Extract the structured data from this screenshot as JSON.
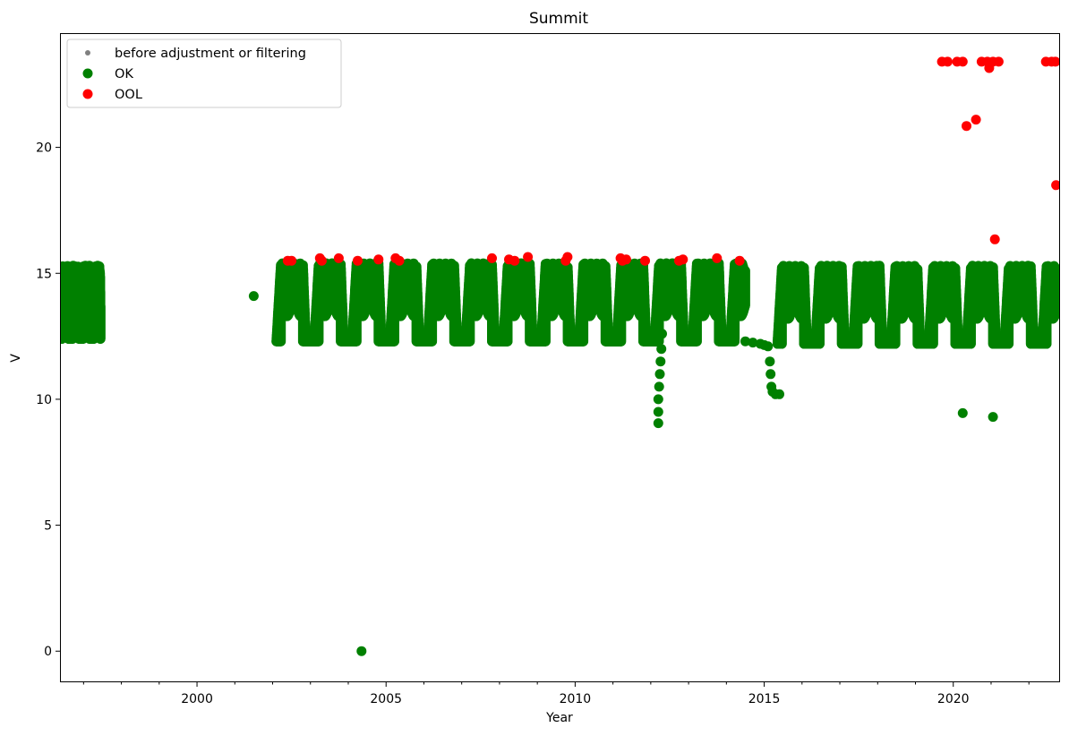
{
  "chart_data": {
    "type": "scatter",
    "title": "Summit",
    "xlabel": "Year",
    "ylabel": "V",
    "xlim": [
      1996.4,
      2022.8
    ],
    "ylim": [
      -1.2,
      24.5
    ],
    "x_ticks": [
      2000,
      2005,
      2010,
      2015,
      2020
    ],
    "y_ticks": [
      0,
      5,
      10,
      15,
      20
    ],
    "grid": false,
    "legend_position": "top-left",
    "legend": [
      "before adjustment or filtering",
      "OK",
      "OOL"
    ],
    "colors": {
      "before": "#808080",
      "ok": "#008000",
      "ool": "#ff0000"
    },
    "seasonal_bands": [
      {
        "series": "OK",
        "start": 1996.4,
        "end": 1997.45,
        "low": 12.4,
        "high": 15.3,
        "period": 0.28
      },
      {
        "series": "OK",
        "start": 2002.1,
        "end": 2014.5,
        "low": 12.3,
        "high": 15.4,
        "period": 1.0
      },
      {
        "series": "OK",
        "start": 2015.35,
        "end": 2022.8,
        "low": 12.2,
        "high": 15.3,
        "period": 1.0
      }
    ],
    "series": [
      {
        "name": "OK",
        "points": [
          [
            2001.5,
            14.1
          ],
          [
            2004.35,
            0.0
          ],
          [
            2020.25,
            9.45
          ],
          [
            2021.05,
            9.3
          ],
          [
            2012.2,
            9.05
          ],
          [
            2012.2,
            9.5
          ],
          [
            2012.2,
            10.0
          ],
          [
            2012.22,
            10.5
          ],
          [
            2012.24,
            11.0
          ],
          [
            2012.26,
            11.5
          ],
          [
            2012.28,
            12.0
          ],
          [
            2012.3,
            12.6
          ],
          [
            2012.35,
            13.4
          ],
          [
            2014.5,
            12.3
          ],
          [
            2014.7,
            12.25
          ],
          [
            2014.9,
            12.2
          ],
          [
            2015.0,
            12.15
          ],
          [
            2015.1,
            12.1
          ],
          [
            2015.15,
            11.5
          ],
          [
            2015.17,
            11.0
          ],
          [
            2015.19,
            10.5
          ],
          [
            2015.22,
            10.3
          ],
          [
            2015.3,
            10.2
          ],
          [
            2015.4,
            10.2
          ]
        ]
      },
      {
        "name": "OOL",
        "points": [
          [
            2002.4,
            15.5
          ],
          [
            2002.5,
            15.5
          ],
          [
            2003.25,
            15.6
          ],
          [
            2003.3,
            15.5
          ],
          [
            2003.75,
            15.6
          ],
          [
            2004.25,
            15.5
          ],
          [
            2004.8,
            15.55
          ],
          [
            2005.25,
            15.6
          ],
          [
            2005.35,
            15.5
          ],
          [
            2007.8,
            15.6
          ],
          [
            2008.25,
            15.55
          ],
          [
            2008.4,
            15.5
          ],
          [
            2008.75,
            15.65
          ],
          [
            2009.75,
            15.5
          ],
          [
            2009.8,
            15.65
          ],
          [
            2011.2,
            15.6
          ],
          [
            2011.25,
            15.5
          ],
          [
            2011.35,
            15.55
          ],
          [
            2011.85,
            15.5
          ],
          [
            2012.75,
            15.5
          ],
          [
            2012.85,
            15.55
          ],
          [
            2013.75,
            15.6
          ],
          [
            2014.35,
            15.5
          ],
          [
            2019.7,
            23.4
          ],
          [
            2019.85,
            23.4
          ],
          [
            2020.1,
            23.4
          ],
          [
            2020.25,
            23.4
          ],
          [
            2020.35,
            20.85
          ],
          [
            2020.6,
            21.1
          ],
          [
            2020.75,
            23.4
          ],
          [
            2020.9,
            23.4
          ],
          [
            2020.95,
            23.15
          ],
          [
            2021.05,
            23.4
          ],
          [
            2021.1,
            16.35
          ],
          [
            2021.2,
            23.4
          ],
          [
            2022.45,
            23.4
          ],
          [
            2022.6,
            23.4
          ],
          [
            2022.7,
            23.4
          ],
          [
            2022.72,
            18.5
          ]
        ]
      }
    ]
  }
}
